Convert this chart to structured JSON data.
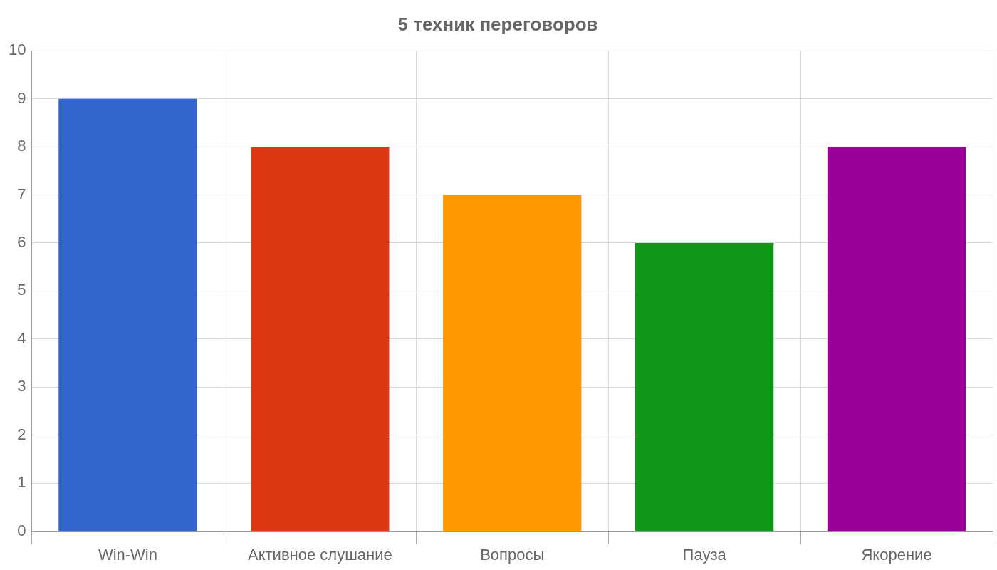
{
  "chart_data": {
    "type": "bar",
    "title": "5 техник переговоров",
    "categories": [
      "Win-Win",
      "Активное слушание",
      "Вопросы",
      "Пауза",
      "Якорение"
    ],
    "values": [
      9,
      8,
      7,
      6,
      8
    ],
    "colors": [
      "#3366cc",
      "#dc3912",
      "#ff9900",
      "#109618",
      "#990099"
    ],
    "ylim": [
      0,
      10
    ],
    "yticks": [
      0,
      1,
      2,
      3,
      4,
      5,
      6,
      7,
      8,
      9,
      10
    ],
    "grid": true,
    "legend": false
  }
}
